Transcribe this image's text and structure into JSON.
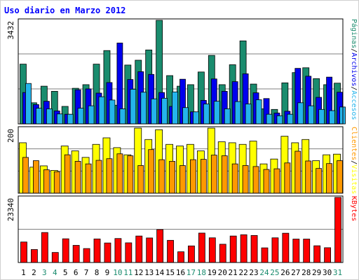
{
  "chart_data": {
    "type": "bar",
    "title": "Uso diario en Marzo 2012",
    "categories": [
      "1",
      "2",
      "3",
      "4",
      "5",
      "6",
      "7",
      "8",
      "9",
      "10",
      "11",
      "12",
      "13",
      "14",
      "15",
      "16",
      "17",
      "18",
      "19",
      "20",
      "21",
      "22",
      "23",
      "24",
      "25",
      "26",
      "27",
      "28",
      "29",
      "30",
      "31"
    ],
    "weekend_days": [
      "3",
      "4",
      "10",
      "11",
      "17",
      "18",
      "24",
      "25",
      "31"
    ],
    "panels": [
      {
        "ymax_label": "3432",
        "ymax": 3432,
        "series": [
          {
            "name": "Páginas",
            "color": "#1a8c6e",
            "values": [
              1980,
              700,
              1250,
              1080,
              580,
              1180,
              1300,
              1980,
              2430,
              620,
              1950,
              2110,
              2450,
              3432,
              1600,
              1250,
              1300,
              1720,
              2270,
              1300,
              1960,
              2750,
              1320,
              500,
              480,
              1360,
              1700,
              1860,
              1500,
              1300,
              1350
            ]
          },
          {
            "name": "Archivos",
            "color": "#0000ee",
            "values": [
              1040,
              640,
              750,
              430,
              320,
              1130,
              1160,
              1020,
              1370,
              2680,
              1470,
              1730,
              1640,
              1040,
              580,
              1480,
              400,
              780,
              1490,
              1080,
              1400,
              1660,
              1030,
              840,
              360,
              420,
              1840,
              1580,
              880,
              1550,
              1050
            ]
          },
          {
            "name": "Accesos",
            "color": "#24b4ec",
            "values": [
              1340,
              520,
              500,
              330,
              320,
              520,
              600,
              900,
              790,
              500,
              1150,
              1050,
              830,
              850,
              1060,
              540,
              400,
              660,
              750,
              500,
              740,
              660,
              800,
              320,
              270,
              320,
              700,
              600,
              480,
              440,
              560
            ]
          }
        ]
      },
      {
        "ymax_label": "200",
        "ymax": 200,
        "series": [
          {
            "name": "Visitas",
            "color": "#ffff00",
            "values": [
              155,
              80,
              84,
              70,
              145,
              130,
              110,
              150,
              170,
              140,
              118,
              200,
              165,
              195,
              150,
              145,
              150,
              130,
              200,
              158,
              155,
              150,
              160,
              90,
              105,
              175,
              155,
              165,
              100,
              118,
              120
            ]
          },
          {
            "name": "Clientes",
            "color": "#ff9900",
            "values": [
              110,
              100,
              72,
              66,
              118,
              98,
              90,
              101,
              106,
              121,
              115,
              85,
              134,
              103,
              98,
              85,
              103,
              104,
              117,
              115,
              90,
              85,
              82,
              73,
              75,
              93,
              129,
              99,
              76,
              91,
              100
            ]
          }
        ]
      },
      {
        "ymax_label": "23340",
        "ymax": 23340,
        "series": [
          {
            "name": "KBytes",
            "color": "#ff0000",
            "values": [
              7350,
              4650,
              10750,
              3600,
              8500,
              6150,
              5000,
              8450,
              7000,
              8600,
              7050,
              9500,
              8800,
              11800,
              7950,
              3850,
              5950,
              10550,
              8850,
              6550,
              9500,
              9950,
              9700,
              5250,
              8850,
              10500,
              8400,
              8400,
              6000,
              5300,
              23340
            ]
          }
        ]
      }
    ]
  },
  "labels": {
    "right_top": [
      "Páginas",
      "/",
      "Archivos",
      "/",
      "Accesos"
    ],
    "right_mid": [
      "Clientes",
      "/",
      "Visitas"
    ],
    "right_bot": [
      "KBytes"
    ]
  },
  "colors": {
    "title": "#0000ff",
    "weekday_label": "#000000",
    "weekend_label": "#1a8c6e",
    "grid": "#808080",
    "panel_border": "#000000",
    "ylabel": "#000000"
  }
}
